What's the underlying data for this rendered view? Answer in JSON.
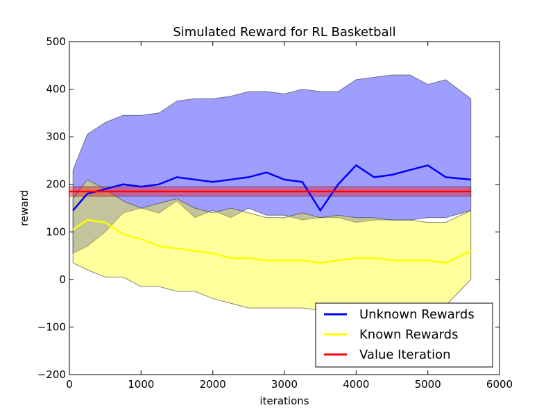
{
  "chart_data": {
    "type": "line",
    "title": "Simulated Reward for RL Basketball",
    "xlabel": "iterations",
    "ylabel": "reward",
    "xlim": [
      0,
      6000
    ],
    "ylim": [
      -200,
      500
    ],
    "xticks": [
      0,
      1000,
      2000,
      3000,
      4000,
      5000,
      6000
    ],
    "yticks": [
      -200,
      -100,
      0,
      100,
      200,
      300,
      400,
      500
    ],
    "xtick_labels": [
      "0",
      "1000",
      "2000",
      "3000",
      "4000",
      "5000",
      "6000"
    ],
    "ytick_labels": [
      "−200",
      "−100",
      "0",
      "100",
      "200",
      "300",
      "400",
      "500"
    ],
    "grid": false,
    "legend_position": "bottom-right",
    "x": [
      50,
      250,
      500,
      750,
      1000,
      1250,
      1500,
      1750,
      2000,
      2250,
      2500,
      2750,
      3000,
      3250,
      3500,
      3750,
      4000,
      4250,
      4500,
      4750,
      5000,
      5250,
      5600
    ],
    "series": [
      {
        "name": "Unknown Rewards",
        "color": "#0000ff",
        "band_color": "#0000ff",
        "values": [
          145,
          180,
          190,
          200,
          195,
          200,
          215,
          210,
          205,
          210,
          215,
          225,
          210,
          205,
          145,
          200,
          240,
          215,
          220,
          230,
          240,
          215,
          210
        ],
        "upper": [
          230,
          305,
          330,
          345,
          345,
          350,
          375,
          380,
          380,
          385,
          395,
          395,
          390,
          400,
          395,
          395,
          420,
          425,
          430,
          430,
          410,
          420,
          380
        ],
        "lower": [
          55,
          70,
          100,
          140,
          150,
          140,
          165,
          130,
          145,
          130,
          150,
          135,
          135,
          125,
          130,
          130,
          120,
          125,
          125,
          125,
          130,
          130,
          145
        ]
      },
      {
        "name": "Known Rewards",
        "color": "#ffff00",
        "band_color": "#ffff00",
        "values": [
          105,
          125,
          120,
          95,
          85,
          70,
          65,
          60,
          55,
          45,
          45,
          40,
          40,
          40,
          35,
          40,
          45,
          45,
          40,
          40,
          40,
          35,
          60
        ],
        "upper": [
          170,
          210,
          190,
          165,
          150,
          160,
          170,
          150,
          140,
          150,
          140,
          130,
          130,
          140,
          130,
          135,
          130,
          130,
          125,
          125,
          120,
          120,
          145
        ],
        "lower": [
          35,
          20,
          5,
          5,
          -15,
          -15,
          -25,
          -25,
          -40,
          -50,
          -60,
          -60,
          -60,
          -60,
          -65,
          -60,
          -55,
          -55,
          -55,
          -55,
          -55,
          -55,
          0
        ]
      },
      {
        "name": "Value Iteration",
        "color": "#ff0000",
        "band_color": "#ff0000",
        "values": [
          185,
          185
        ],
        "x": [
          0,
          5600
        ],
        "upper": [
          195,
          195
        ],
        "lower": [
          175,
          175
        ]
      }
    ]
  }
}
